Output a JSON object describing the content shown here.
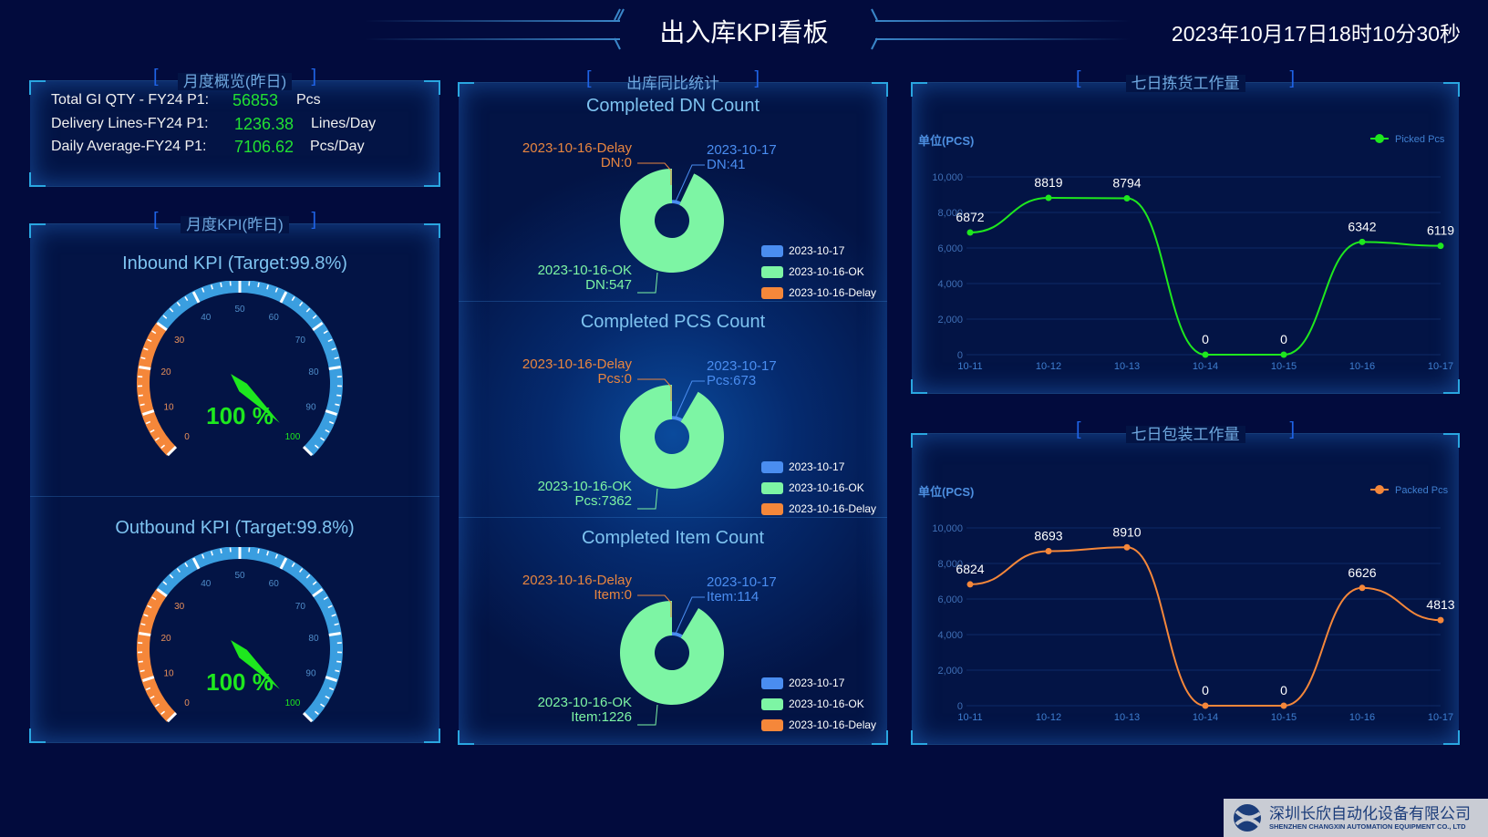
{
  "header": {
    "title": "出入库KPI看板",
    "datetime": "2023年10月17日18时10分30秒"
  },
  "overview": {
    "heading": "月度概览(昨日)",
    "rows": [
      {
        "label": "Total GI QTY - FY24 P1:",
        "value": "56853",
        "unit": "Pcs"
      },
      {
        "label": "Delivery Lines-FY24 P1:",
        "value": "1236.38",
        "unit": "Lines/Day"
      },
      {
        "label": "Daily Average-FY24 P1:",
        "value": "7106.62",
        "unit": "Pcs/Day"
      }
    ]
  },
  "kpi": {
    "heading": "月度KPI(昨日)",
    "scale": [
      0,
      100
    ],
    "colors": {
      "low": "#f5873a",
      "high": "#3a9ee0",
      "needle": "#1ee81e"
    },
    "gauges": [
      {
        "title": "Inbound KPI (Target:99.8%)",
        "value": 100,
        "display": "100 %"
      },
      {
        "title": "Outbound KPI (Target:99.8%)",
        "value": 100,
        "display": "100 %"
      }
    ]
  },
  "outbound": {
    "heading": "出库同比统计",
    "legend": [
      {
        "name": "2023-10-17",
        "color": "#4a8df0"
      },
      {
        "name": "2023-10-16-OK",
        "color": "#7df5a4"
      },
      {
        "name": "2023-10-16-Delay",
        "color": "#f5873a"
      }
    ],
    "charts": [
      {
        "title": "Completed DN Count",
        "slices": [
          {
            "name": "2023-10-17",
            "value_label": "DN:41",
            "value": 41
          },
          {
            "name": "2023-10-16-OK",
            "value_label": "DN:547",
            "value": 547
          },
          {
            "name": "2023-10-16-Delay",
            "value_label": "DN:0",
            "value": 0
          }
        ]
      },
      {
        "title": "Completed PCS Count",
        "slices": [
          {
            "name": "2023-10-17",
            "value_label": "Pcs:673",
            "value": 673
          },
          {
            "name": "2023-10-16-OK",
            "value_label": "Pcs:7362",
            "value": 7362
          },
          {
            "name": "2023-10-16-Delay",
            "value_label": "Pcs:0",
            "value": 0
          }
        ]
      },
      {
        "title": "Completed Item Count",
        "slices": [
          {
            "name": "2023-10-17",
            "value_label": "Item:114",
            "value": 114
          },
          {
            "name": "2023-10-16-OK",
            "value_label": "Item:1226",
            "value": 1226
          },
          {
            "name": "2023-10-16-Delay",
            "value_label": "Item:0",
            "value": 0
          }
        ]
      }
    ]
  },
  "picking": {
    "heading": "七日拣货工作量",
    "unit_label": "单位(PCS)"
  },
  "packing": {
    "heading": "七日包装工作量",
    "unit_label": "单位(PCS)"
  },
  "chart_data": [
    {
      "type": "line",
      "title": "七日拣货工作量",
      "ylabel": "单位(PCS)",
      "legend": "Picked Pcs",
      "legend_position": "top-right",
      "color": "#1ee81e",
      "categories": [
        "10-11",
        "10-12",
        "10-13",
        "10-14",
        "10-15",
        "10-16",
        "10-17"
      ],
      "values": [
        6872,
        8819,
        8794,
        0,
        0,
        6342,
        6119
      ],
      "ylim": [
        0,
        10000
      ],
      "yticks": [
        "0",
        "2,000",
        "4,000",
        "6,000",
        "8,000",
        "10,000"
      ],
      "grid": true
    },
    {
      "type": "line",
      "title": "七日包装工作量",
      "ylabel": "单位(PCS)",
      "legend": "Packed Pcs",
      "legend_position": "top-right",
      "color": "#f5873a",
      "categories": [
        "10-11",
        "10-12",
        "10-13",
        "10-14",
        "10-15",
        "10-16",
        "10-17"
      ],
      "values": [
        6824,
        8693,
        8910,
        0,
        0,
        6626,
        4813
      ],
      "ylim": [
        0,
        10000
      ],
      "yticks": [
        "0",
        "2,000",
        "4,000",
        "6,000",
        "8,000",
        "10,000"
      ],
      "grid": true
    }
  ],
  "footer": {
    "company_cn": "深圳长欣自动化设备有限公司",
    "company_en": "SHENZHEN CHANGXIN AUTOMATION EQUIPMENT CO., LTD"
  }
}
